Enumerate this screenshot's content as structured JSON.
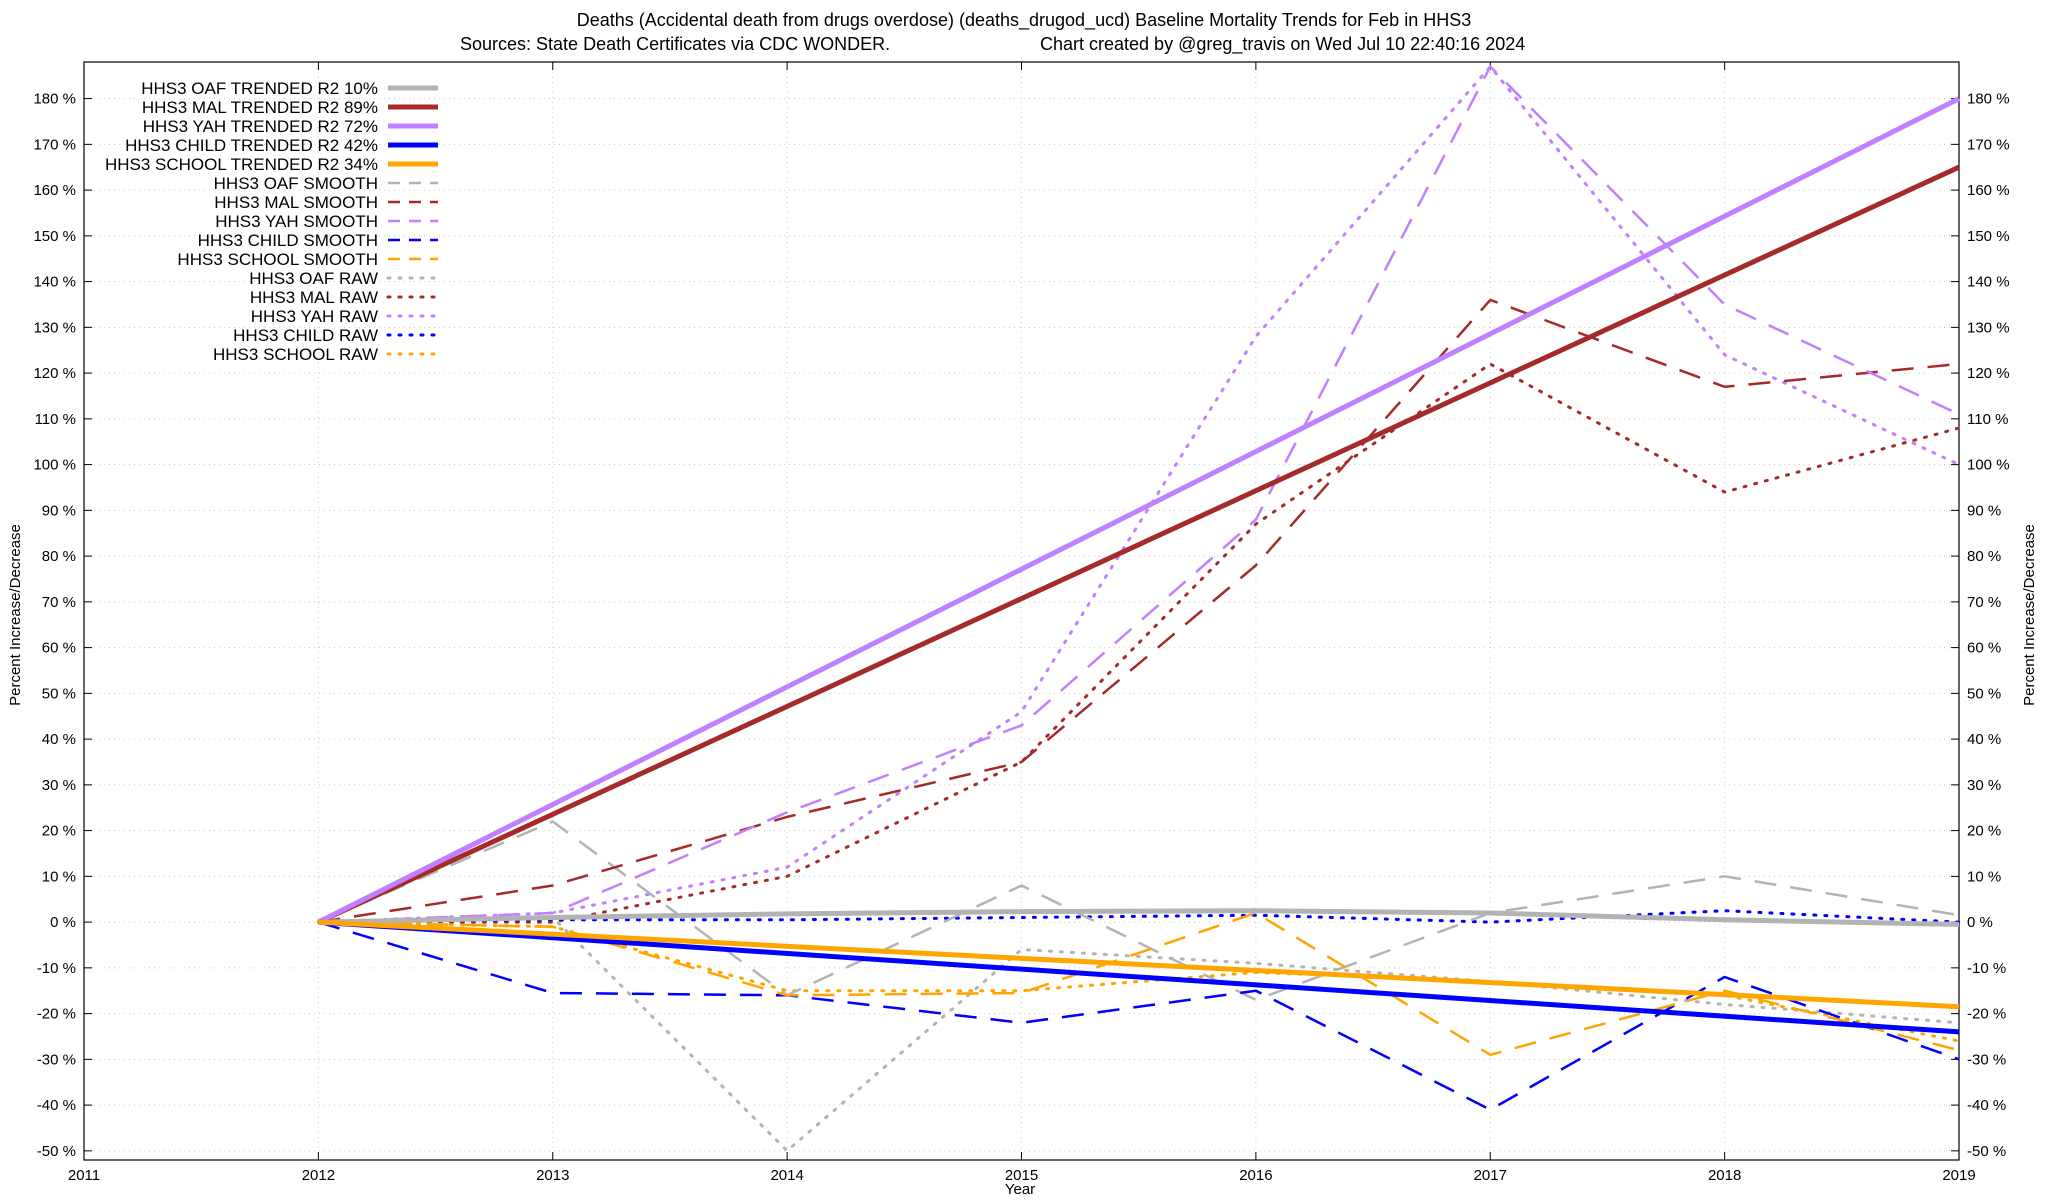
{
  "chart_data": {
    "type": "line",
    "title_line1": "Deaths (Accidental death from drugs overdose) (deaths_drugod_ucd)  Baseline Mortality Trends for Feb in HHS3",
    "title_line2_left": "Sources: State Death Certificates via CDC WONDER.",
    "title_line2_right": "Chart created by @greg_travis on Wed Jul 10 22:40:16 2024",
    "xlabel": "Year",
    "ylabel_left": "Percent Increase/Decrease",
    "ylabel_right": "Percent Increase/Decrease",
    "xlim": [
      2011,
      2019
    ],
    "ylim": [
      -52,
      188
    ],
    "x_ticks": [
      "2011",
      "2012",
      "2013",
      "2014",
      "2015",
      "2016",
      "2017",
      "2018",
      "2019"
    ],
    "y_ticks": [
      "-50 %",
      "-40 %",
      "-30 %",
      "-20 %",
      "-10 %",
      "0 %",
      "10 %",
      "20 %",
      "30 %",
      "40 %",
      "50 %",
      "60 %",
      "70 %",
      "80 %",
      "90 %",
      "100 %",
      "110 %",
      "120 %",
      "130 %",
      "140 %",
      "150 %",
      "160 %",
      "170 %",
      "180 %"
    ],
    "grid": true,
    "legend_position": "top-left",
    "series": [
      {
        "name": "HHS3 OAF TRENDED R2  10%",
        "color": "#b3b3b3",
        "style": "solid",
        "width": 5,
        "x": [
          2012,
          2013,
          2014,
          2015,
          2016,
          2017,
          2018,
          2019
        ],
        "values": [
          0,
          1,
          1.8,
          2.3,
          2.5,
          2.0,
          0.5,
          -0.5
        ]
      },
      {
        "name": "HHS3 MAL TRENDED R2  89%",
        "color": "#a52a2a",
        "style": "solid",
        "width": 5,
        "x": [
          2012,
          2019
        ],
        "values": [
          0,
          165
        ]
      },
      {
        "name": "HHS3 YAH TRENDED R2  72%",
        "color": "#c080ff",
        "style": "solid",
        "width": 5,
        "x": [
          2012,
          2019
        ],
        "values": [
          0,
          180
        ]
      },
      {
        "name": "HHS3 CHILD TRENDED R2  42%",
        "color": "#0000ff",
        "style": "solid",
        "width": 5,
        "x": [
          2012,
          2019
        ],
        "values": [
          0,
          -24
        ]
      },
      {
        "name": "HHS3 SCHOOL TRENDED R2  34%",
        "color": "#ffa500",
        "style": "solid",
        "width": 5,
        "x": [
          2012,
          2019
        ],
        "values": [
          0,
          -18.5
        ]
      },
      {
        "name": "HHS3 OAF SMOOTH",
        "color": "#b3b3b3",
        "style": "dashed",
        "width": 2.5,
        "x": [
          2012,
          2013,
          2014,
          2015,
          2016,
          2017,
          2018,
          2019
        ],
        "values": [
          0,
          22,
          -16,
          8,
          -17,
          2,
          10,
          1.5
        ]
      },
      {
        "name": "HHS3 MAL SMOOTH",
        "color": "#a52a2a",
        "style": "dashed",
        "width": 2.5,
        "x": [
          2012,
          2013,
          2014,
          2015,
          2016,
          2017,
          2018,
          2019
        ],
        "values": [
          0,
          8,
          23,
          35,
          78,
          136,
          117,
          122
        ]
      },
      {
        "name": "HHS3 YAH SMOOTH",
        "color": "#c080ff",
        "style": "dashed",
        "width": 2.5,
        "x": [
          2012,
          2013,
          2014,
          2015,
          2016,
          2017,
          2018,
          2019
        ],
        "values": [
          0,
          2,
          24,
          43,
          88,
          187,
          135,
          111
        ]
      },
      {
        "name": "HHS3 CHILD SMOOTH",
        "color": "#0000ff",
        "style": "dashed",
        "width": 2.5,
        "x": [
          2012,
          2013,
          2014,
          2015,
          2016,
          2017,
          2018,
          2019
        ],
        "values": [
          0,
          -15.5,
          -16,
          -22,
          -15,
          -41,
          -12,
          -30
        ]
      },
      {
        "name": "HHS3 SCHOOL SMOOTH",
        "color": "#ffa500",
        "style": "dashed",
        "width": 2.5,
        "x": [
          2012,
          2013,
          2014,
          2015,
          2016,
          2017,
          2018,
          2019
        ],
        "values": [
          0,
          -1,
          -16,
          -15.5,
          2,
          -29,
          -15,
          -28
        ]
      },
      {
        "name": "HHS3 OAF RAW",
        "color": "#b3b3b3",
        "style": "dotted",
        "width": 3,
        "x": [
          2012,
          2013,
          2014,
          2015,
          2016,
          2017,
          2018,
          2019
        ],
        "values": [
          0,
          1,
          -50,
          -6,
          -9,
          -13,
          -18,
          -22
        ]
      },
      {
        "name": "HHS3 MAL RAW",
        "color": "#a52a2a",
        "style": "dotted",
        "width": 3,
        "x": [
          2012,
          2013,
          2014,
          2015,
          2016,
          2017,
          2018,
          2019
        ],
        "values": [
          0,
          0,
          10,
          35,
          87,
          122,
          94,
          108
        ]
      },
      {
        "name": "HHS3 YAH RAW",
        "color": "#c080ff",
        "style": "dotted",
        "width": 3,
        "x": [
          2012,
          2013,
          2014,
          2015,
          2016,
          2017,
          2018,
          2019
        ],
        "values": [
          0,
          2,
          12,
          46,
          128,
          187,
          124,
          100
        ]
      },
      {
        "name": "HHS3 CHILD RAW",
        "color": "#0000ff",
        "style": "dotted",
        "width": 3,
        "x": [
          2012,
          2013,
          2014,
          2015,
          2016,
          2017,
          2018,
          2019
        ],
        "values": [
          0,
          0.5,
          0.5,
          1,
          1.5,
          0,
          2.5,
          0
        ]
      },
      {
        "name": "HHS3 SCHOOL RAW",
        "color": "#ffa500",
        "style": "dotted",
        "width": 3,
        "x": [
          2012,
          2013,
          2014,
          2015,
          2016,
          2017,
          2018,
          2019
        ],
        "values": [
          0,
          -1,
          -15,
          -15,
          -11,
          -13,
          -16,
          -26
        ]
      }
    ]
  }
}
